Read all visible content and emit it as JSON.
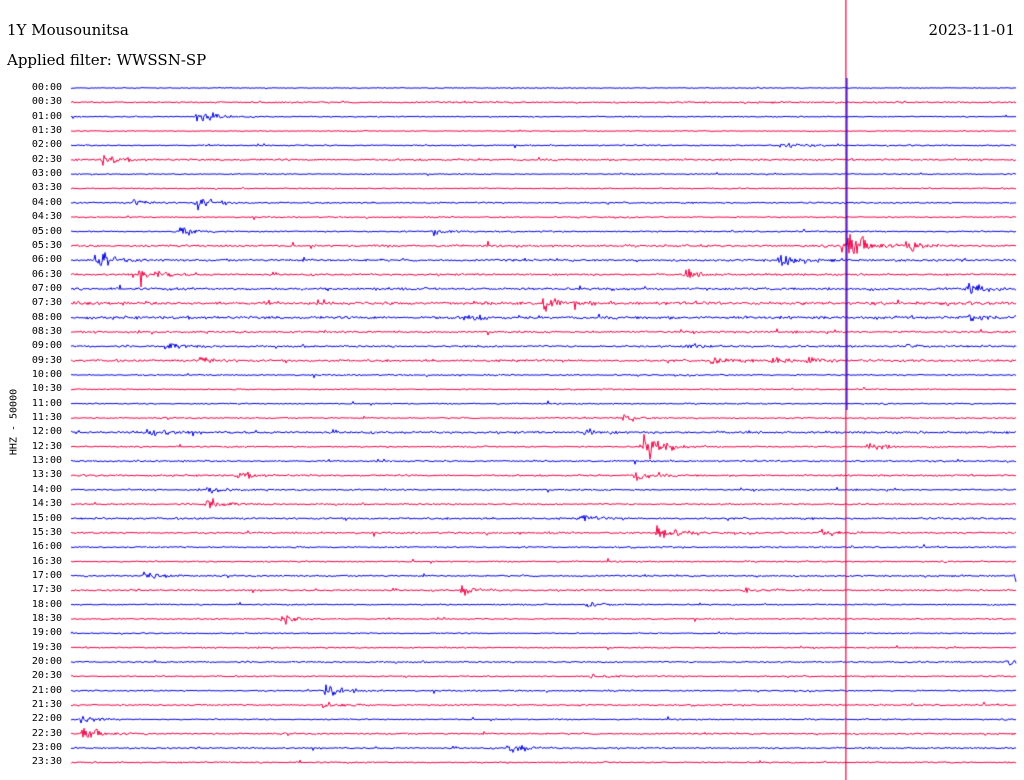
{
  "header": {
    "station": "1Y Mousounitsa",
    "filter": "Applied filter: WWSSN-SP",
    "date": "2023-11-01"
  },
  "chart_data": {
    "type": "line",
    "title": "1Y Mousounitsa",
    "subtitle": "Applied filter: WWSSN-SP",
    "date": "2023-11-01",
    "ylabel": "HHZ - 50000",
    "rows": [
      "00:00",
      "00:30",
      "01:00",
      "01:30",
      "02:00",
      "02:30",
      "03:00",
      "03:30",
      "04:00",
      "04:30",
      "05:00",
      "05:30",
      "06:00",
      "06:30",
      "07:00",
      "07:30",
      "08:00",
      "08:30",
      "09:00",
      "09:30",
      "10:00",
      "10:30",
      "11:00",
      "11:30",
      "12:00",
      "12:30",
      "13:00",
      "13:30",
      "14:00",
      "14:30",
      "15:00",
      "15:30",
      "16:00",
      "16:30",
      "17:00",
      "17:30",
      "18:00",
      "18:30",
      "19:00",
      "19:30",
      "20:00",
      "20:30",
      "21:00",
      "21:30",
      "22:00",
      "22:30",
      "23:00",
      "23:30"
    ],
    "colors": [
      "#0000dd",
      "#ee0044"
    ],
    "noise": [
      0.6,
      1.2,
      0.8,
      0.7,
      1.0,
      1.4,
      0.8,
      0.9,
      1.1,
      0.9,
      1.0,
      1.5,
      1.6,
      1.4,
      1.8,
      2.2,
      2.0,
      1.5,
      1.4,
      1.6,
      1.0,
      0.9,
      0.9,
      1.0,
      1.6,
      1.1,
      1.2,
      1.3,
      1.2,
      1.1,
      1.4,
      1.3,
      1.1,
      1.0,
      1.2,
      1.2,
      1.0,
      1.0,
      0.9,
      1.0,
      1.1,
      1.0,
      1.0,
      1.2,
      0.9,
      1.2,
      1.1,
      1.1
    ],
    "events": [
      {
        "row": 2,
        "minute": 4.0,
        "amp": 12
      },
      {
        "row": 4,
        "minute": 22.5,
        "amp": 7
      },
      {
        "row": 5,
        "minute": 1.0,
        "amp": 8
      },
      {
        "row": 8,
        "minute": 2.0,
        "amp": 5
      },
      {
        "row": 8,
        "minute": 4.0,
        "amp": 9
      },
      {
        "row": 10,
        "minute": 3.5,
        "amp": 8
      },
      {
        "row": 10,
        "minute": 11.5,
        "amp": 6
      },
      {
        "row": 11,
        "minute": 24.5,
        "amp": 40
      },
      {
        "row": 11,
        "minute": 26.5,
        "amp": 10
      },
      {
        "row": 12,
        "minute": 0.8,
        "amp": 12
      },
      {
        "row": 12,
        "minute": 22.5,
        "amp": 12
      },
      {
        "row": 13,
        "minute": 2.2,
        "amp": 14
      },
      {
        "row": 13,
        "minute": 19.5,
        "amp": 6
      },
      {
        "row": 14,
        "minute": 28.5,
        "amp": 10
      },
      {
        "row": 15,
        "minute": 15.0,
        "amp": 10
      },
      {
        "row": 16,
        "minute": 12.5,
        "amp": 6
      },
      {
        "row": 16,
        "minute": 28.5,
        "amp": 6
      },
      {
        "row": 18,
        "minute": 3.0,
        "amp": 6
      },
      {
        "row": 18,
        "minute": 19.5,
        "amp": 5
      },
      {
        "row": 18,
        "minute": 26.5,
        "amp": 5
      },
      {
        "row": 19,
        "minute": 4.1,
        "amp": 6
      },
      {
        "row": 19,
        "minute": 20.3,
        "amp": 6
      },
      {
        "row": 19,
        "minute": 22.2,
        "amp": 6
      },
      {
        "row": 19,
        "minute": 23.4,
        "amp": 6
      },
      {
        "row": 23,
        "minute": 17.5,
        "amp": 6
      },
      {
        "row": 24,
        "minute": 2.4,
        "amp": 9
      },
      {
        "row": 24,
        "minute": 16.3,
        "amp": 5
      },
      {
        "row": 25,
        "minute": 18.2,
        "amp": 22
      },
      {
        "row": 25,
        "minute": 25.3,
        "amp": 7
      },
      {
        "row": 27,
        "minute": 5.3,
        "amp": 6
      },
      {
        "row": 27,
        "minute": 17.9,
        "amp": 8
      },
      {
        "row": 28,
        "minute": 4.3,
        "amp": 6
      },
      {
        "row": 29,
        "minute": 4.3,
        "amp": 10
      },
      {
        "row": 30,
        "minute": 16.2,
        "amp": 5
      },
      {
        "row": 31,
        "minute": 18.6,
        "amp": 14
      },
      {
        "row": 31,
        "minute": 23.8,
        "amp": 6
      },
      {
        "row": 34,
        "minute": 2.3,
        "amp": 7
      },
      {
        "row": 34,
        "minute": 30.0,
        "amp": 7
      },
      {
        "row": 35,
        "minute": 12.4,
        "amp": 7
      },
      {
        "row": 35,
        "minute": 21.4,
        "amp": 5
      },
      {
        "row": 36,
        "minute": 16.4,
        "amp": 5
      },
      {
        "row": 37,
        "minute": 6.7,
        "amp": 10
      },
      {
        "row": 40,
        "minute": 29.7,
        "amp": 6
      },
      {
        "row": 41,
        "minute": 16.5,
        "amp": 4
      },
      {
        "row": 42,
        "minute": 8.1,
        "amp": 12
      },
      {
        "row": 43,
        "minute": 8.0,
        "amp": 4
      },
      {
        "row": 44,
        "minute": 0.3,
        "amp": 6
      },
      {
        "row": 45,
        "minute": 0.3,
        "amp": 14
      },
      {
        "row": 46,
        "minute": 13.9,
        "amp": 9
      }
    ],
    "spike": {
      "row": 0,
      "minute": 24.6
    }
  }
}
